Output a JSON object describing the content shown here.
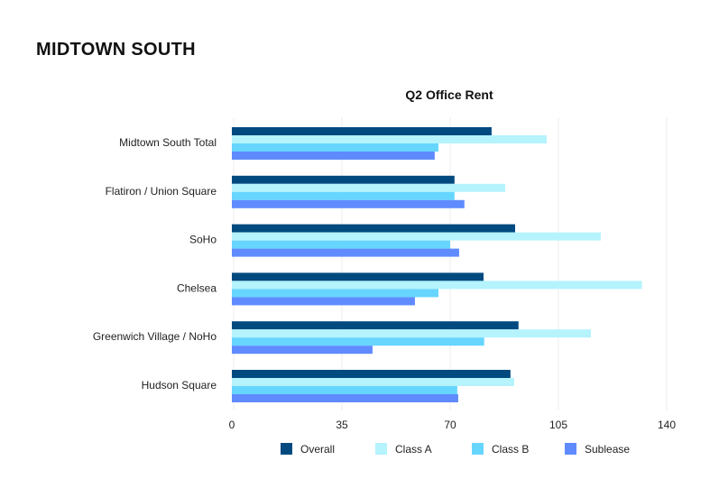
{
  "header": {
    "title": "MIDTOWN SOUTH"
  },
  "chart_data": {
    "type": "bar",
    "orientation": "horizontal",
    "title": "Q2 Office Rent",
    "xlabel": "",
    "ylabel": "",
    "xlim": [
      0,
      140
    ],
    "x_ticks": [
      0,
      35,
      70,
      105,
      140
    ],
    "grid": true,
    "legend": "bottom",
    "categories": [
      "Midtown South Total",
      "Flatiron / Union Square",
      "SoHo",
      "Chelsea",
      "Greenwich Village / NoHo",
      "Hudson Square"
    ],
    "series": [
      {
        "name": "Overall",
        "color": "#004a80",
        "values": [
          83.4,
          71.4,
          91.0,
          80.8,
          92.1,
          89.5
        ]
      },
      {
        "name": "Class A",
        "color": "#b5f3fd",
        "values": [
          101.2,
          87.8,
          118.7,
          132.0,
          115.5,
          90.7
        ]
      },
      {
        "name": "Class B",
        "color": "#66d6ff",
        "values": [
          66.2,
          71.4,
          70.0,
          66.2,
          81.0,
          72.3
        ]
      },
      {
        "name": "Sublease",
        "color": "#5f8bff",
        "values": [
          65.0,
          74.6,
          72.9,
          58.6,
          44.9,
          72.6
        ]
      }
    ]
  }
}
